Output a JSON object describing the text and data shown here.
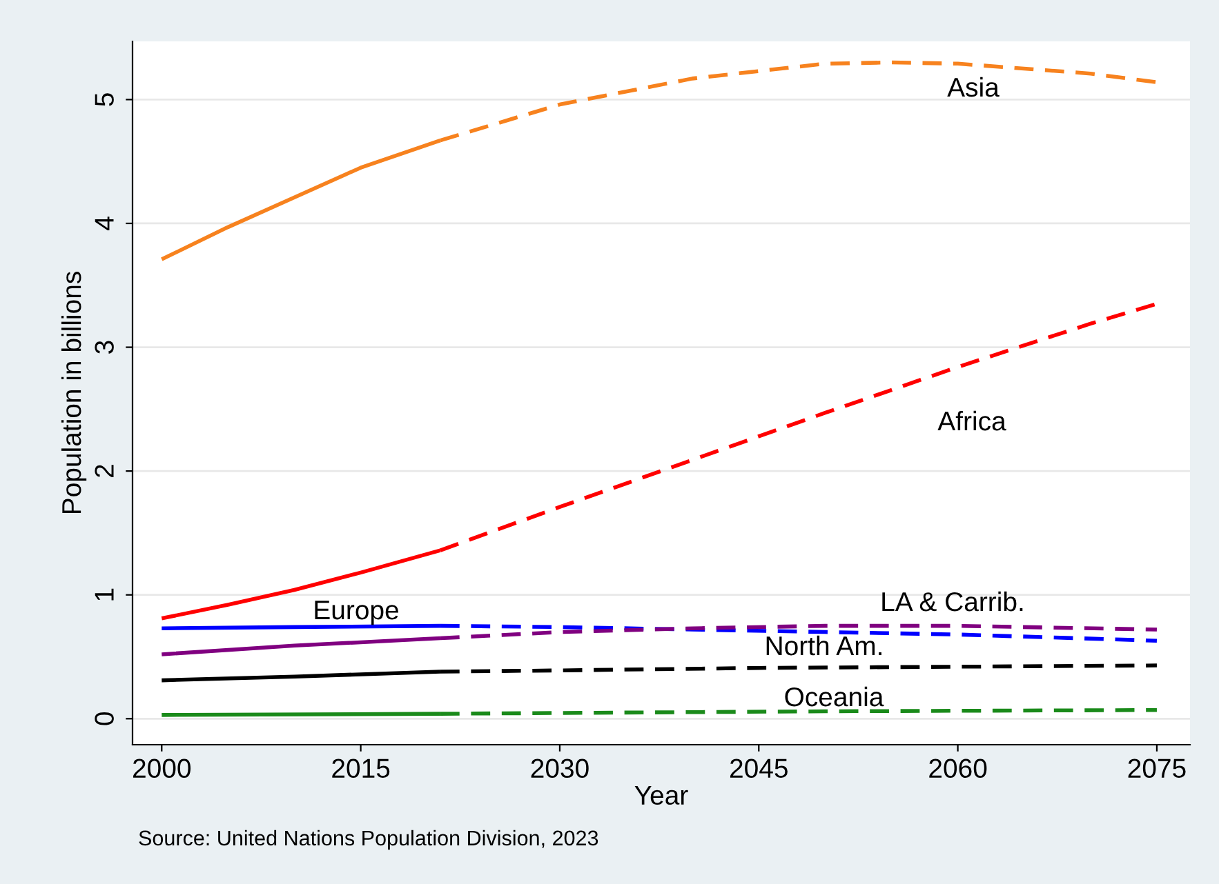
{
  "chart_data": {
    "type": "line",
    "xlabel": "Year",
    "ylabel": "Population in billions",
    "xlim": [
      1997.8,
      2077.5
    ],
    "ylim": [
      -0.21,
      5.47
    ],
    "xticks": [
      2000,
      2015,
      2030,
      2045,
      2060,
      2075
    ],
    "yticks": [
      0,
      1,
      2,
      3,
      4,
      5
    ],
    "grid": "y",
    "legend": false,
    "marker": "none",
    "series": [
      {
        "color": "#f7821e",
        "line_style": "solid",
        "x": [
          2000,
          2005,
          2010,
          2015,
          2021
        ],
        "values": [
          3.71,
          3.97,
          4.21,
          4.45,
          4.67
        ]
      },
      {
        "color": "#f7821e",
        "line_style": "dashed",
        "x": [
          2021,
          2030,
          2040,
          2050,
          2055,
          2060,
          2070,
          2075
        ],
        "values": [
          4.67,
          4.96,
          5.17,
          5.29,
          5.3,
          5.29,
          5.21,
          5.14
        ]
      },
      {
        "color": "#ff0000",
        "line_style": "solid",
        "x": [
          2000,
          2005,
          2010,
          2015,
          2021
        ],
        "values": [
          0.81,
          0.92,
          1.04,
          1.18,
          1.36
        ]
      },
      {
        "color": "#ff0000",
        "line_style": "dashed",
        "x": [
          2021,
          2030,
          2040,
          2050,
          2060,
          2070,
          2075
        ],
        "values": [
          1.36,
          1.71,
          2.09,
          2.47,
          2.84,
          3.19,
          3.35
        ]
      },
      {
        "color": "#0000ff",
        "line_style": "solid",
        "x": [
          2000,
          2010,
          2021
        ],
        "values": [
          0.73,
          0.74,
          0.75
        ]
      },
      {
        "color": "#0000ff",
        "line_style": "dashed",
        "x": [
          2021,
          2030,
          2040,
          2050,
          2060,
          2075
        ],
        "values": [
          0.75,
          0.74,
          0.72,
          0.7,
          0.68,
          0.63
        ]
      },
      {
        "color": "#800080",
        "line_style": "solid",
        "x": [
          2000,
          2010,
          2021
        ],
        "values": [
          0.52,
          0.59,
          0.65
        ]
      },
      {
        "color": "#800080",
        "line_style": "dashed",
        "x": [
          2021,
          2030,
          2040,
          2050,
          2060,
          2075
        ],
        "values": [
          0.65,
          0.7,
          0.73,
          0.75,
          0.75,
          0.72
        ]
      },
      {
        "color": "#000000",
        "line_style": "solid",
        "x": [
          2000,
          2010,
          2021
        ],
        "values": [
          0.31,
          0.34,
          0.38
        ]
      },
      {
        "color": "#000000",
        "line_style": "dashed",
        "x": [
          2021,
          2030,
          2045,
          2060,
          2075
        ],
        "values": [
          0.38,
          0.39,
          0.41,
          0.42,
          0.43
        ]
      },
      {
        "color": "#1a8a1a",
        "line_style": "solid",
        "x": [
          2000,
          2021
        ],
        "values": [
          0.03,
          0.04
        ]
      },
      {
        "color": "#1a8a1a",
        "line_style": "dashed",
        "x": [
          2021,
          2050,
          2075
        ],
        "values": [
          0.04,
          0.06,
          0.07
        ]
      }
    ],
    "annotations": [
      "Asia",
      "Africa",
      "Europe",
      "LA & Carrib.",
      "North Am.",
      "Oceania",
      "Source: United Nations Population Division, 2023"
    ]
  }
}
